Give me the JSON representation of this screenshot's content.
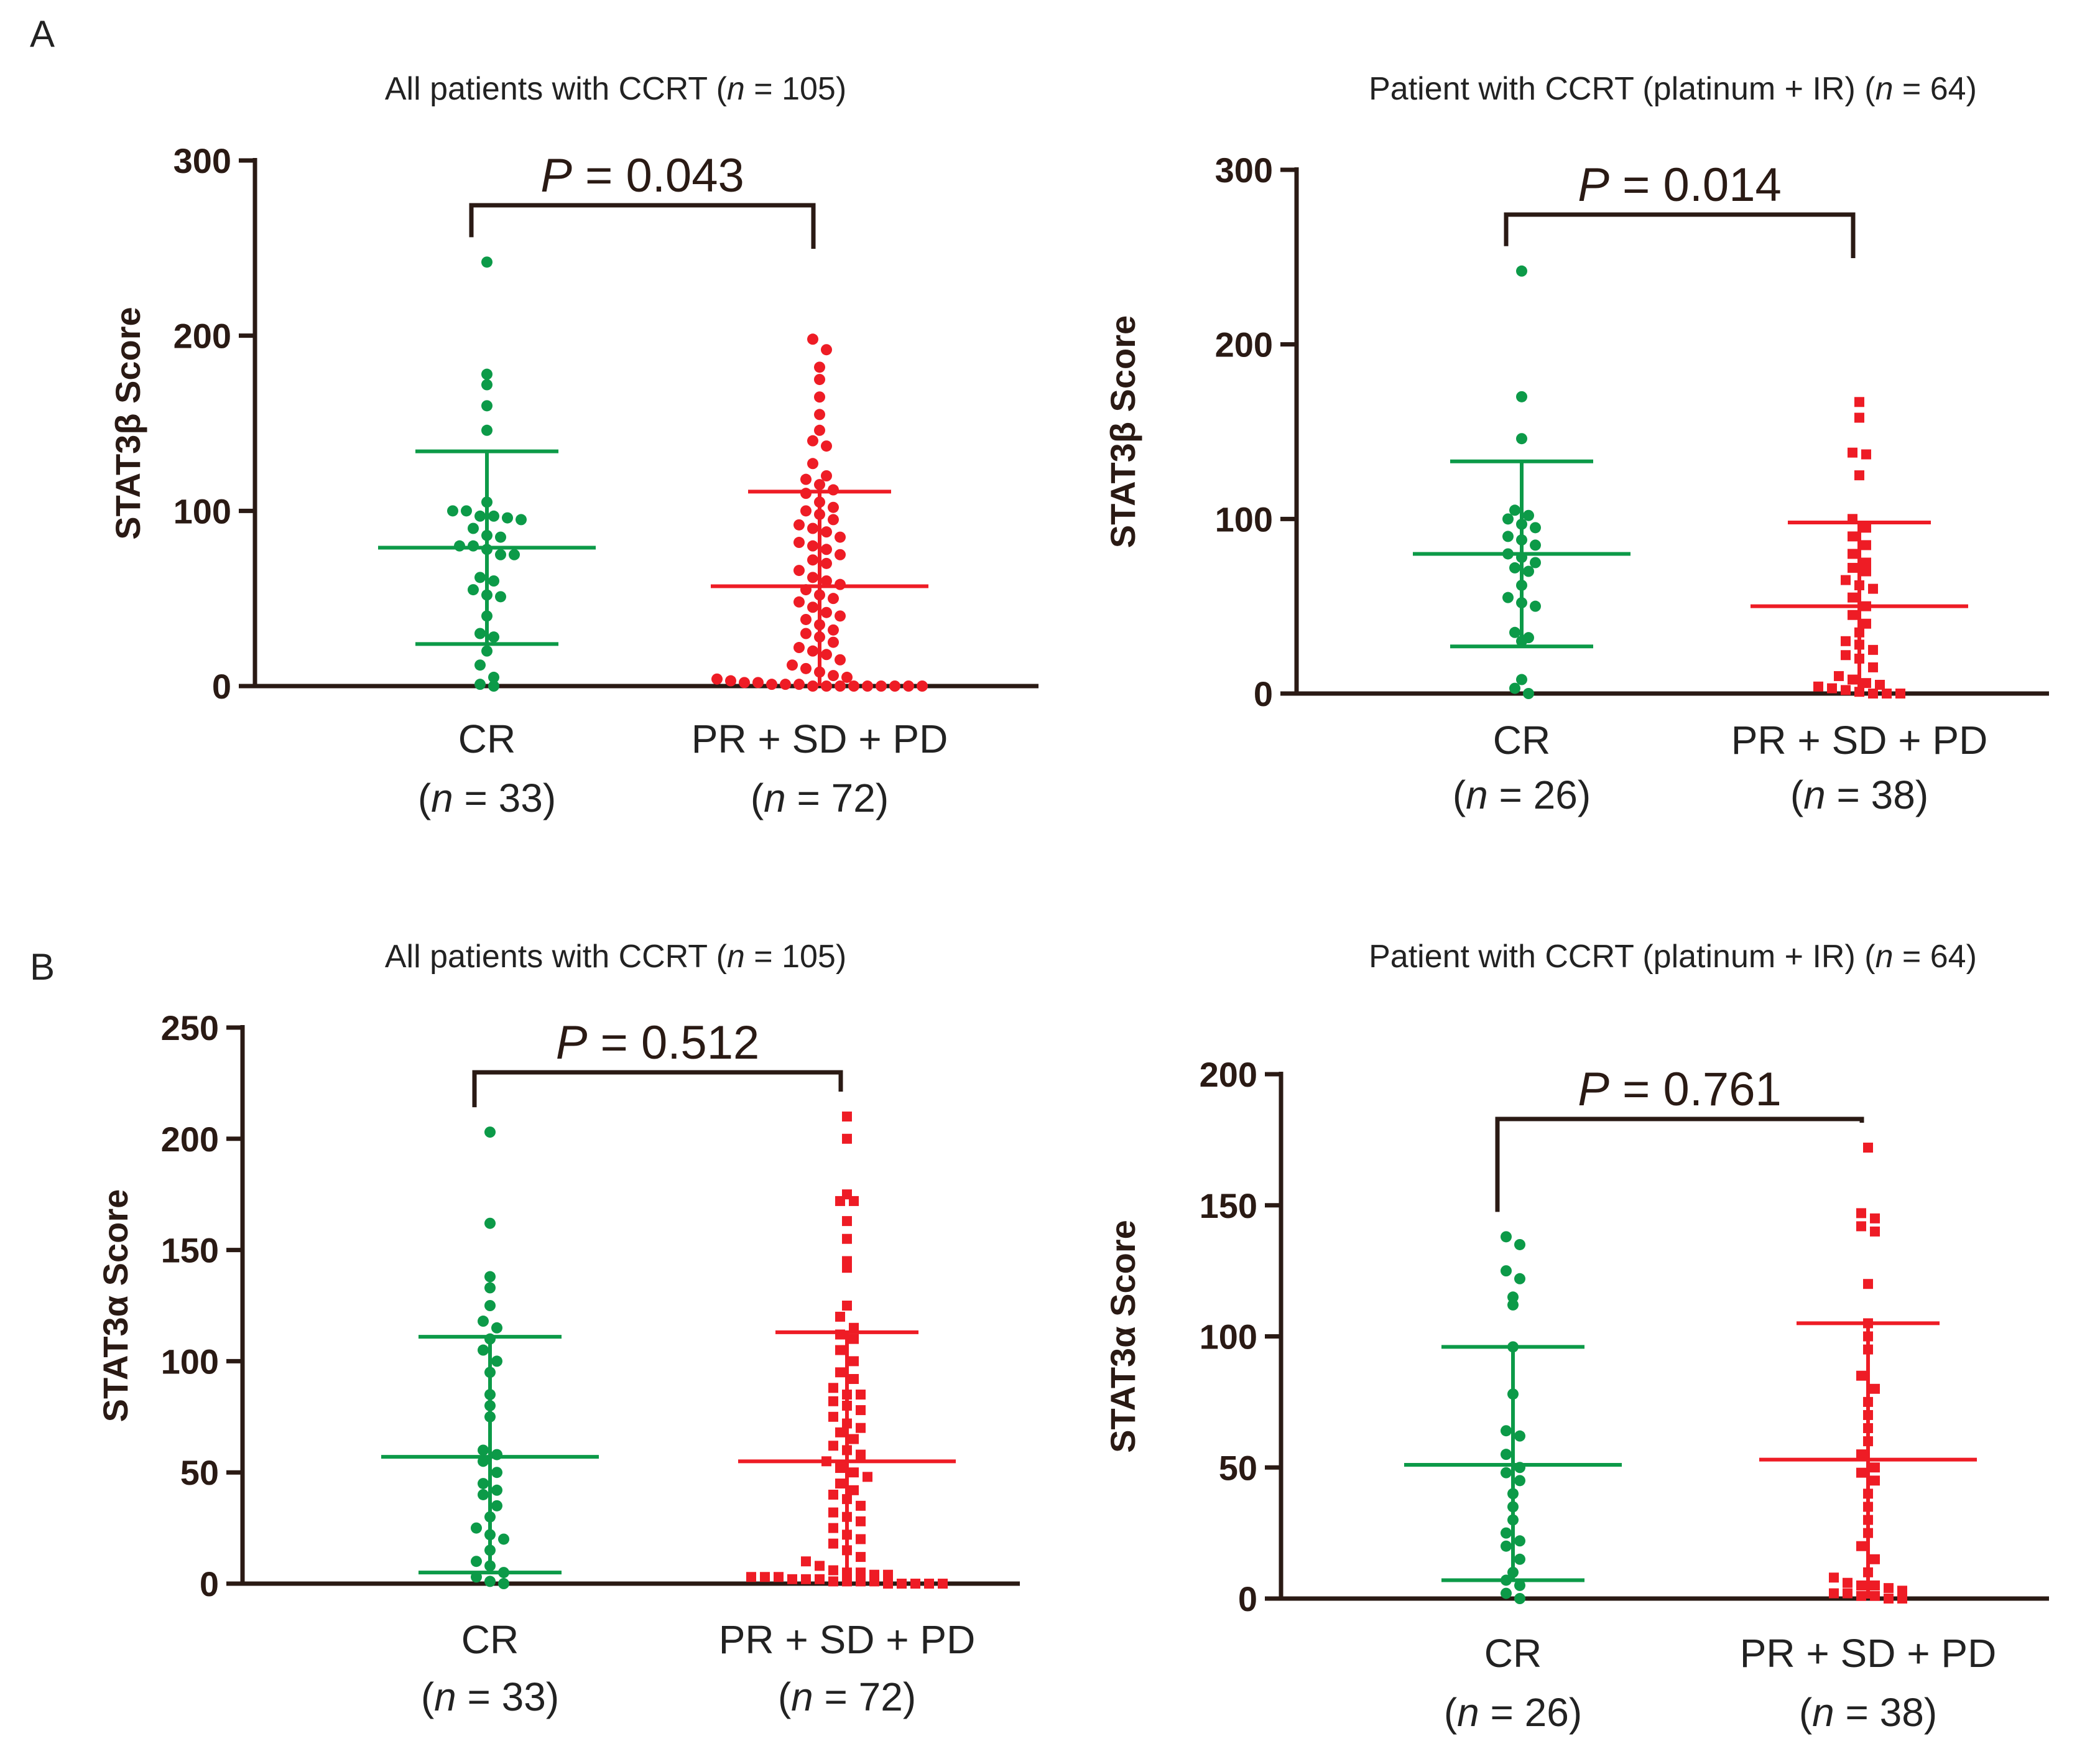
{
  "colors": {
    "green": "#0c9a48",
    "red": "#ee1c25",
    "axis": "#2a1a14"
  },
  "panel_labels": [
    "A",
    "B"
  ],
  "chart_data": [
    {
      "type": "scatter",
      "panel": "A",
      "title_prefix": "All patients with CCRT (",
      "title_n": "n",
      "title_suffix": " = 105)",
      "ylabel": "STAT3β Score",
      "ylim": [
        0,
        300
      ],
      "yticks": [
        0,
        100,
        200,
        300
      ],
      "p_letter": "P",
      "p_rest": " = 0.043",
      "groups": [
        {
          "name": "CR",
          "n_letter": "n",
          "n_rest": " = 33",
          "color": "green",
          "marker": "circle",
          "mean": 79,
          "sd_low": 24,
          "sd_high": 134,
          "values": [
            242,
            178,
            172,
            160,
            146,
            105,
            100,
            100,
            97,
            97,
            96,
            95,
            90,
            86,
            85,
            80,
            80,
            78,
            75,
            75,
            62,
            60,
            55,
            52,
            51,
            40,
            30,
            28,
            20,
            12,
            5,
            1,
            0
          ]
        },
        {
          "name": "PR + SD + PD",
          "n_letter": "n",
          "n_rest": " = 72",
          "color": "red",
          "marker": "circle",
          "mean": 57,
          "sd_low": 0,
          "sd_high": 111,
          "values": [
            198,
            192,
            182,
            175,
            165,
            155,
            146,
            140,
            137,
            127,
            120,
            118,
            115,
            112,
            110,
            105,
            102,
            100,
            98,
            95,
            92,
            90,
            88,
            85,
            82,
            80,
            78,
            75,
            72,
            70,
            66,
            62,
            60,
            58,
            55,
            52,
            50,
            48,
            45,
            42,
            40,
            38,
            35,
            32,
            30,
            28,
            25,
            22,
            20,
            18,
            15,
            12,
            10,
            8,
            6,
            5,
            4,
            3,
            2,
            2,
            1,
            1,
            1,
            0,
            0,
            0,
            0,
            0,
            0,
            0,
            0,
            0
          ]
        }
      ]
    },
    {
      "type": "scatter",
      "panel": "A",
      "title_prefix": "Patient with CCRT (platinum + IR) (",
      "title_n": "n",
      "title_suffix": " = 64)",
      "ylabel": "STAT3β Score",
      "ylim": [
        0,
        300
      ],
      "yticks": [
        0,
        100,
        200,
        300
      ],
      "p_letter": "P",
      "p_rest": " = 0.014",
      "groups": [
        {
          "name": "CR",
          "n_letter": "n",
          "n_rest": " = 26",
          "color": "green",
          "marker": "circle",
          "mean": 80,
          "sd_low": 27,
          "sd_high": 133,
          "values": [
            242,
            170,
            146,
            105,
            102,
            100,
            97,
            95,
            90,
            88,
            85,
            80,
            78,
            75,
            72,
            70,
            62,
            55,
            52,
            50,
            35,
            32,
            30,
            8,
            3,
            0
          ]
        },
        {
          "name": "PR + SD + PD",
          "n_letter": "n",
          "n_rest": " = 38",
          "color": "red",
          "marker": "square",
          "mean": 50,
          "sd_low": 0,
          "sd_high": 98,
          "values": [
            167,
            158,
            138,
            137,
            125,
            100,
            95,
            90,
            85,
            80,
            75,
            72,
            70,
            65,
            62,
            60,
            55,
            50,
            45,
            40,
            35,
            30,
            28,
            25,
            22,
            20,
            15,
            10,
            8,
            6,
            5,
            4,
            3,
            2,
            1,
            0,
            0,
            0
          ]
        }
      ]
    },
    {
      "type": "scatter",
      "panel": "B",
      "title_prefix": "All patients with CCRT (",
      "title_n": "n",
      "title_suffix": " = 105)",
      "ylabel": "STAT3α Score",
      "ylim": [
        0,
        250
      ],
      "yticks": [
        0,
        50,
        100,
        150,
        200,
        250
      ],
      "p_letter": "P",
      "p_rest": " = 0.512",
      "groups": [
        {
          "name": "CR",
          "n_letter": "n",
          "n_rest": " = 33",
          "color": "green",
          "marker": "circle",
          "mean": 57,
          "sd_low": 5,
          "sd_high": 111,
          "values": [
            203,
            162,
            138,
            133,
            125,
            118,
            115,
            110,
            105,
            100,
            95,
            85,
            80,
            75,
            60,
            58,
            55,
            50,
            45,
            42,
            40,
            35,
            30,
            25,
            22,
            20,
            15,
            10,
            8,
            5,
            3,
            1,
            0
          ]
        },
        {
          "name": "PR + SD + PD",
          "n_letter": "n",
          "n_rest": " = 72",
          "color": "red",
          "marker": "square",
          "mean": 55,
          "sd_low": 0,
          "sd_high": 113,
          "values": [
            210,
            200,
            175,
            172,
            172,
            163,
            155,
            145,
            142,
            125,
            120,
            115,
            112,
            110,
            105,
            100,
            95,
            92,
            88,
            85,
            85,
            82,
            80,
            78,
            75,
            72,
            70,
            68,
            65,
            62,
            60,
            58,
            55,
            52,
            50,
            48,
            45,
            42,
            40,
            38,
            35,
            32,
            30,
            28,
            25,
            22,
            20,
            18,
            15,
            12,
            10,
            8,
            6,
            5,
            5,
            4,
            4,
            3,
            3,
            3,
            2,
            2,
            2,
            1,
            1,
            1,
            1,
            0,
            0,
            0,
            0,
            0
          ]
        }
      ]
    },
    {
      "type": "scatter",
      "panel": "B",
      "title_prefix": "Patient with CCRT (platinum + IR) (",
      "title_n": "n",
      "title_suffix": " = 64)",
      "ylabel": "STAT3α Score",
      "ylim": [
        0,
        200
      ],
      "yticks": [
        0,
        50,
        100,
        150,
        200
      ],
      "p_letter": "P",
      "p_rest": " = 0.761",
      "groups": [
        {
          "name": "CR",
          "n_letter": "n",
          "n_rest": " = 26",
          "color": "green",
          "marker": "circle",
          "mean": 51,
          "sd_low": 7,
          "sd_high": 96,
          "values": [
            138,
            135,
            125,
            122,
            115,
            112,
            96,
            78,
            64,
            62,
            55,
            50,
            48,
            45,
            40,
            35,
            30,
            25,
            22,
            20,
            15,
            10,
            7,
            5,
            2,
            0
          ]
        },
        {
          "name": "PR + SD + PD",
          "n_letter": "n",
          "n_rest": " = 38",
          "color": "red",
          "marker": "square",
          "mean": 53,
          "sd_low": 0,
          "sd_high": 105,
          "values": [
            172,
            147,
            145,
            142,
            140,
            120,
            105,
            100,
            95,
            85,
            80,
            75,
            70,
            65,
            60,
            55,
            50,
            48,
            45,
            40,
            35,
            30,
            25,
            20,
            15,
            10,
            8,
            6,
            5,
            5,
            4,
            3,
            2,
            2,
            1,
            1,
            0,
            0
          ]
        }
      ]
    }
  ]
}
